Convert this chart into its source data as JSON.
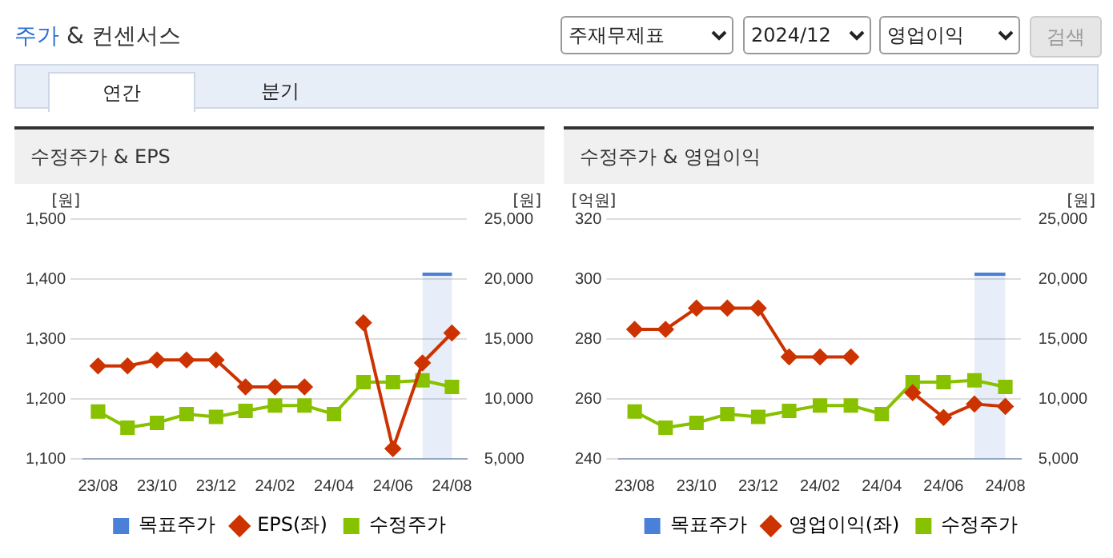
{
  "chart_data": [
    {
      "type": "other",
      "title": "주가 & 컨센서스",
      "annotations": [
        "주재무제표",
        "2024/12",
        "영업이익",
        "검색",
        "연간",
        "분기"
      ]
    },
    {
      "type": "line",
      "title": "수정주가 & EPS",
      "ylabel": "[원]",
      "y2label": "[원]",
      "categories": [
        "23/08",
        null,
        "23/10",
        null,
        "23/12",
        null,
        "24/02",
        null,
        "24/04",
        null,
        "24/06",
        null,
        "24/08"
      ],
      "ylim": [
        1100,
        1500
      ],
      "yticks": [
        {
          "value": 1100,
          "label": "1,100"
        },
        {
          "value": 1200,
          "label": "1,200"
        },
        {
          "value": 1300,
          "label": "1,300"
        },
        {
          "value": 1400,
          "label": "1,400"
        },
        {
          "value": 1500,
          "label": "1,500"
        }
      ],
      "y2lim": [
        5000,
        25000
      ],
      "y2ticks": [
        {
          "value": 5000,
          "label": "5,000"
        },
        {
          "value": 10000,
          "label": "10,000"
        },
        {
          "value": 15000,
          "label": "15,000"
        },
        {
          "value": 20000,
          "label": "20,000"
        },
        {
          "value": 25000,
          "label": "25,000"
        }
      ],
      "grid": "y",
      "legend": "bottom",
      "series": [
        {
          "name": "목표주가",
          "type": "area",
          "axis": "y2",
          "color": "#4a80d8",
          "values": [
            null,
            null,
            null,
            null,
            null,
            null,
            null,
            null,
            null,
            null,
            null,
            20400,
            20400
          ]
        },
        {
          "name": "EPS(좌)",
          "type": "line",
          "marker": "diamond",
          "color": "#cc3300",
          "values": [
            1255,
            1255,
            1265,
            1265,
            1265,
            1220,
            1220,
            1220,
            null,
            1327,
            1117,
            1260,
            1310
          ]
        },
        {
          "name": "수정주가",
          "type": "line",
          "marker": "square",
          "axis": "y2",
          "color": "#88c100",
          "values": [
            8950,
            7600,
            8000,
            8730,
            8500,
            9000,
            9450,
            9450,
            8730,
            11400,
            11400,
            11550,
            11000
          ]
        }
      ]
    },
    {
      "type": "line",
      "title": "수정주가 & 영업이익",
      "ylabel": "[억원]",
      "y2label": "[원]",
      "categories": [
        "23/08",
        null,
        "23/10",
        null,
        "23/12",
        null,
        "24/02",
        null,
        "24/04",
        null,
        "24/06",
        null,
        "24/08"
      ],
      "ylim": [
        240,
        320
      ],
      "yticks": [
        240,
        260,
        280,
        300,
        320
      ],
      "y2lim": [
        5000,
        25000
      ],
      "y2ticks": [
        {
          "value": 5000,
          "label": "5,000"
        },
        {
          "value": 10000,
          "label": "10,000"
        },
        {
          "value": 15000,
          "label": "15,000"
        },
        {
          "value": 20000,
          "label": "20,000"
        },
        {
          "value": 25000,
          "label": "25,000"
        }
      ],
      "grid": "y",
      "legend": "bottom",
      "series": [
        {
          "name": "목표주가",
          "type": "area",
          "axis": "y2",
          "color": "#4a80d8",
          "values": [
            null,
            null,
            null,
            null,
            null,
            null,
            null,
            null,
            null,
            null,
            null,
            20400,
            20400
          ]
        },
        {
          "name": "영업이익(좌)",
          "type": "line",
          "marker": "diamond",
          "color": "#cc3300",
          "values": [
            283.2,
            283.2,
            290.3,
            290.3,
            290.3,
            274,
            274,
            274,
            null,
            262.1,
            253.8,
            258.3,
            257.5
          ]
        },
        {
          "name": "수정주가",
          "type": "line",
          "marker": "square",
          "axis": "y2",
          "color": "#88c100",
          "values": [
            8950,
            7600,
            8000,
            8730,
            8500,
            9000,
            9450,
            9450,
            8730,
            11400,
            11400,
            11550,
            11000
          ]
        }
      ]
    }
  ]
}
